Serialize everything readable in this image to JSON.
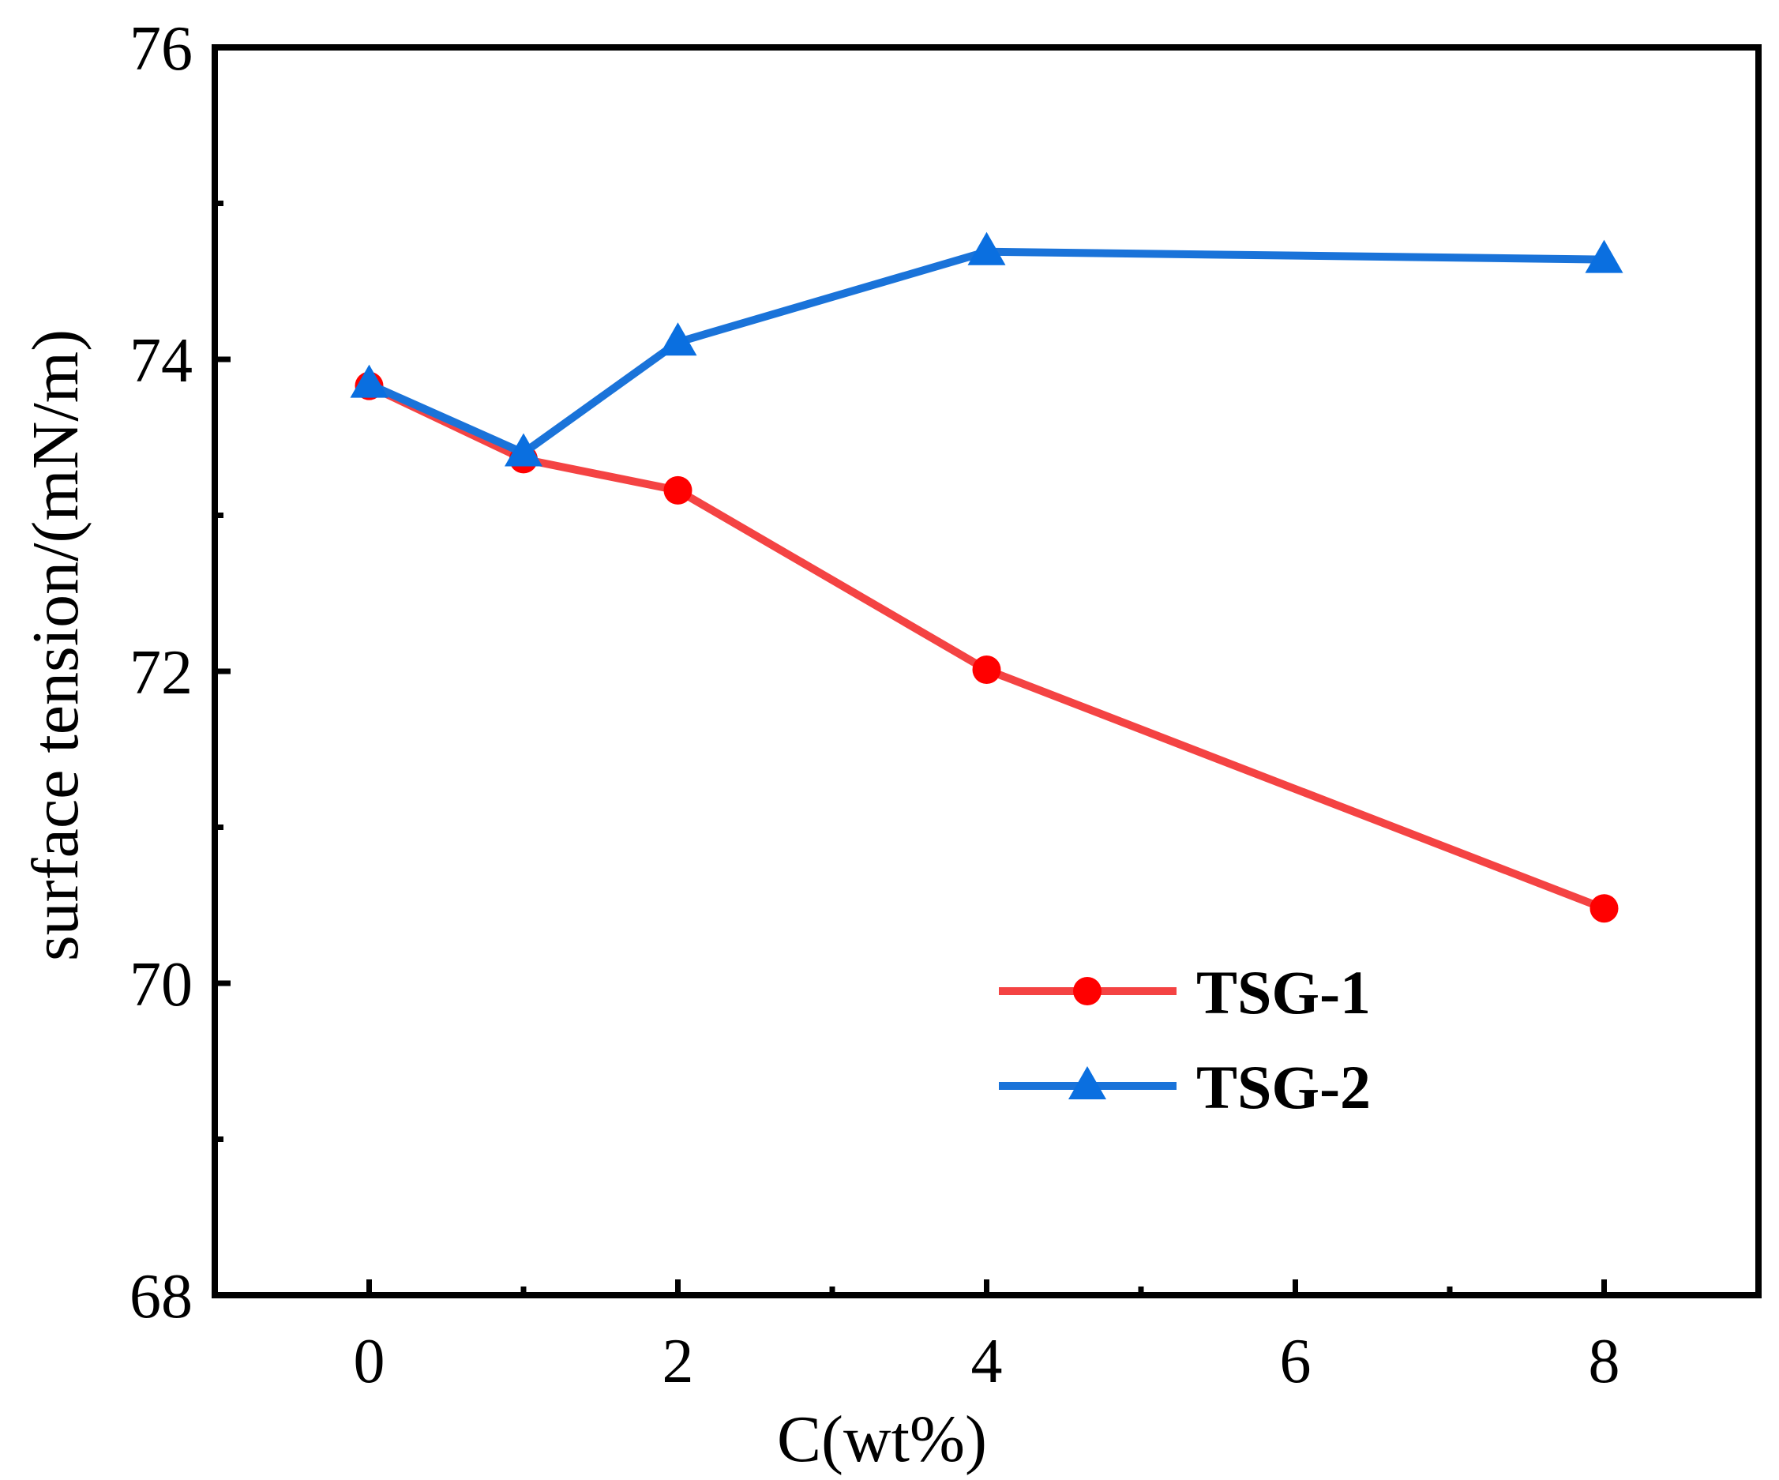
{
  "chart_data": {
    "type": "line",
    "title": "",
    "xlabel": "C(wt%)",
    "ylabel": "surface tension/(mN/m)",
    "xlim": [
      -1,
      9
    ],
    "ylim": [
      68,
      76
    ],
    "xticks": [
      0,
      2,
      4,
      6,
      8
    ],
    "xminor": [
      1,
      3,
      5,
      7
    ],
    "yticks": [
      68,
      70,
      72,
      74,
      76
    ],
    "yminor": [
      69,
      71,
      73,
      75
    ],
    "grid": false,
    "legend_position": "lower-right",
    "series": [
      {
        "name": "TSG-1",
        "color": "#f44343",
        "marker_color": "#ff0000",
        "marker": "circle",
        "x": [
          0,
          1,
          2,
          4,
          8
        ],
        "y": [
          73.83,
          73.36,
          73.16,
          72.01,
          70.48
        ]
      },
      {
        "name": "TSG-2",
        "color": "#1a73d9",
        "marker_color": "#0a6fe0",
        "marker": "triangle",
        "x": [
          0,
          1,
          2,
          4,
          8
        ],
        "y": [
          73.84,
          73.4,
          74.11,
          74.69,
          74.64
        ]
      }
    ]
  }
}
